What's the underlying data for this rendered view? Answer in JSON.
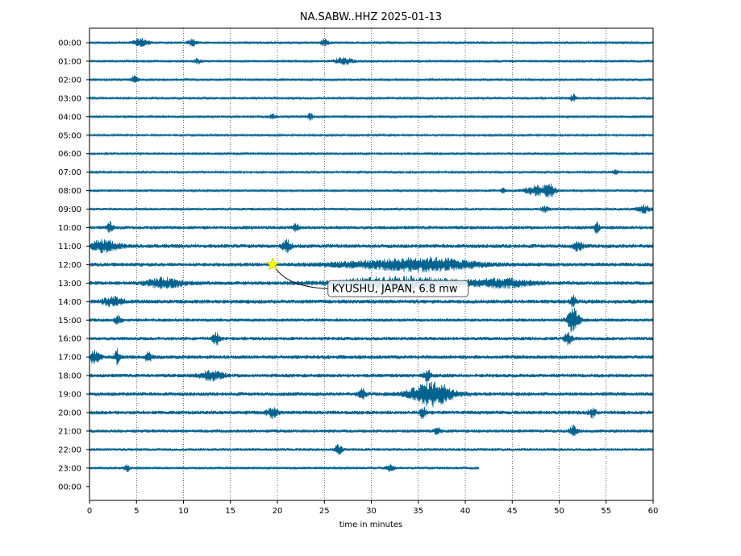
{
  "chart_data": {
    "type": "line",
    "title": "NA.SABW..HHZ 2025-01-13",
    "xlabel": "time in minutes",
    "ylabel": "",
    "xlim": [
      0,
      60
    ],
    "x_ticks": [
      0,
      5,
      10,
      15,
      20,
      25,
      30,
      35,
      40,
      45,
      50,
      55,
      60
    ],
    "y_tick_labels": [
      "00:00",
      "01:00",
      "02:00",
      "03:00",
      "04:00",
      "05:00",
      "06:00",
      "07:00",
      "08:00",
      "09:00",
      "10:00",
      "11:00",
      "12:00",
      "13:00",
      "14:00",
      "15:00",
      "16:00",
      "17:00",
      "18:00",
      "19:00",
      "20:00",
      "21:00",
      "22:00",
      "23:00",
      "00:00"
    ],
    "grid": "vertical dotted",
    "trace_color": "#00638f",
    "rows": [
      {
        "hour": "00:00",
        "end_minute": 60,
        "noise": 0.18,
        "bursts": [
          {
            "t": 5.5,
            "w": 0.8,
            "a": 0.6
          },
          {
            "t": 11,
            "w": 0.5,
            "a": 0.5
          },
          {
            "t": 25,
            "w": 0.4,
            "a": 0.5
          }
        ]
      },
      {
        "hour": "01:00",
        "end_minute": 60,
        "noise": 0.18,
        "bursts": [
          {
            "t": 27,
            "w": 1.0,
            "a": 0.5
          },
          {
            "t": 11.5,
            "w": 0.4,
            "a": 0.4
          }
        ]
      },
      {
        "hour": "02:00",
        "end_minute": 60,
        "noise": 0.16,
        "bursts": [
          {
            "t": 4.7,
            "w": 0.3,
            "a": 0.4
          },
          {
            "t": 5,
            "w": 0.3,
            "a": 0.3
          }
        ]
      },
      {
        "hour": "03:00",
        "end_minute": 60,
        "noise": 0.16,
        "bursts": [
          {
            "t": 51.5,
            "w": 0.3,
            "a": 0.6
          }
        ]
      },
      {
        "hour": "04:00",
        "end_minute": 60,
        "noise": 0.17,
        "bursts": [
          {
            "t": 19.5,
            "w": 0.3,
            "a": 0.4
          },
          {
            "t": 23.5,
            "w": 0.3,
            "a": 0.5
          }
        ]
      },
      {
        "hour": "05:00",
        "end_minute": 60,
        "noise": 0.14,
        "bursts": []
      },
      {
        "hour": "06:00",
        "end_minute": 60,
        "noise": 0.15,
        "bursts": []
      },
      {
        "hour": "07:00",
        "end_minute": 60,
        "noise": 0.15,
        "bursts": [
          {
            "t": 56,
            "w": 0.4,
            "a": 0.3
          }
        ]
      },
      {
        "hour": "08:00",
        "end_minute": 60,
        "noise": 0.17,
        "bursts": [
          {
            "t": 44,
            "w": 0.2,
            "a": 0.5
          },
          {
            "t": 47.5,
            "w": 1.2,
            "a": 0.7
          },
          {
            "t": 49,
            "w": 0.6,
            "a": 0.9
          }
        ]
      },
      {
        "hour": "09:00",
        "end_minute": 60,
        "noise": 0.2,
        "bursts": [
          {
            "t": 48.5,
            "w": 0.4,
            "a": 0.5
          },
          {
            "t": 59,
            "w": 0.6,
            "a": 0.6
          }
        ]
      },
      {
        "hour": "10:00",
        "end_minute": 60,
        "noise": 0.28,
        "bursts": [
          {
            "t": 2.2,
            "w": 0.3,
            "a": 0.8
          },
          {
            "t": 22,
            "w": 0.3,
            "a": 0.6
          },
          {
            "t": 54,
            "w": 0.3,
            "a": 0.8
          }
        ]
      },
      {
        "hour": "11:00",
        "end_minute": 60,
        "noise": 0.32,
        "bursts": [
          {
            "t": 1.5,
            "w": 1.5,
            "a": 0.8
          },
          {
            "t": 21,
            "w": 0.5,
            "a": 0.8
          },
          {
            "t": 52,
            "w": 0.5,
            "a": 0.6
          }
        ]
      },
      {
        "hour": "12:00",
        "end_minute": 60,
        "noise": 0.3,
        "bursts": [
          {
            "t": 33,
            "w": 7.0,
            "a": 0.6
          },
          {
            "t": 37,
            "w": 4.0,
            "a": 0.5
          }
        ]
      },
      {
        "hour": "13:00",
        "end_minute": 60,
        "noise": 0.3,
        "bursts": [
          {
            "t": 8,
            "w": 2.0,
            "a": 0.7
          },
          {
            "t": 33,
            "w": 6.0,
            "a": 0.9
          },
          {
            "t": 44,
            "w": 3.0,
            "a": 0.6
          }
        ]
      },
      {
        "hour": "14:00",
        "end_minute": 60,
        "noise": 0.32,
        "bursts": [
          {
            "t": 2.5,
            "w": 1.0,
            "a": 0.7
          },
          {
            "t": 51.5,
            "w": 0.3,
            "a": 0.8
          }
        ]
      },
      {
        "hour": "15:00",
        "end_minute": 60,
        "noise": 0.26,
        "bursts": [
          {
            "t": 51.5,
            "w": 0.6,
            "a": 2.0
          },
          {
            "t": 3,
            "w": 0.4,
            "a": 0.6
          }
        ]
      },
      {
        "hour": "16:00",
        "end_minute": 60,
        "noise": 0.28,
        "bursts": [
          {
            "t": 13.5,
            "w": 0.4,
            "a": 0.8
          },
          {
            "t": 51,
            "w": 0.4,
            "a": 0.9
          }
        ]
      },
      {
        "hour": "17:00",
        "end_minute": 60,
        "noise": 0.3,
        "bursts": [
          {
            "t": 0.5,
            "w": 0.6,
            "a": 0.9
          },
          {
            "t": 3,
            "w": 0.3,
            "a": 1.1
          },
          {
            "t": 6.3,
            "w": 0.3,
            "a": 0.9
          }
        ]
      },
      {
        "hour": "18:00",
        "end_minute": 60,
        "noise": 0.3,
        "bursts": [
          {
            "t": 13,
            "w": 1.2,
            "a": 0.7
          },
          {
            "t": 36,
            "w": 0.4,
            "a": 0.8
          }
        ]
      },
      {
        "hour": "19:00",
        "end_minute": 60,
        "noise": 0.3,
        "bursts": [
          {
            "t": 36.5,
            "w": 2.2,
            "a": 1.8
          },
          {
            "t": 29,
            "w": 0.4,
            "a": 0.7
          }
        ]
      },
      {
        "hour": "20:00",
        "end_minute": 60,
        "noise": 0.3,
        "bursts": [
          {
            "t": 19.5,
            "w": 0.6,
            "a": 0.7
          },
          {
            "t": 35.5,
            "w": 0.3,
            "a": 0.9
          },
          {
            "t": 53.5,
            "w": 0.4,
            "a": 0.7
          }
        ]
      },
      {
        "hour": "21:00",
        "end_minute": 60,
        "noise": 0.26,
        "bursts": [
          {
            "t": 51.5,
            "w": 0.4,
            "a": 0.8
          },
          {
            "t": 37,
            "w": 0.3,
            "a": 0.6
          }
        ]
      },
      {
        "hour": "22:00",
        "end_minute": 60,
        "noise": 0.22,
        "bursts": [
          {
            "t": 26.5,
            "w": 0.4,
            "a": 0.7
          }
        ]
      },
      {
        "hour": "23:00",
        "end_minute": 41.5,
        "noise": 0.2,
        "bursts": [
          {
            "t": 4,
            "w": 0.3,
            "a": 0.5
          },
          {
            "t": 32,
            "w": 0.4,
            "a": 0.5
          }
        ]
      }
    ],
    "event_marker": {
      "row": 12,
      "minute": 19.5,
      "symbol": "star",
      "color": "#ffff00"
    },
    "annotation": {
      "text": "KYUSHU, JAPAN, 6.8 mw",
      "row": 13.3,
      "minute": 25.3
    }
  }
}
